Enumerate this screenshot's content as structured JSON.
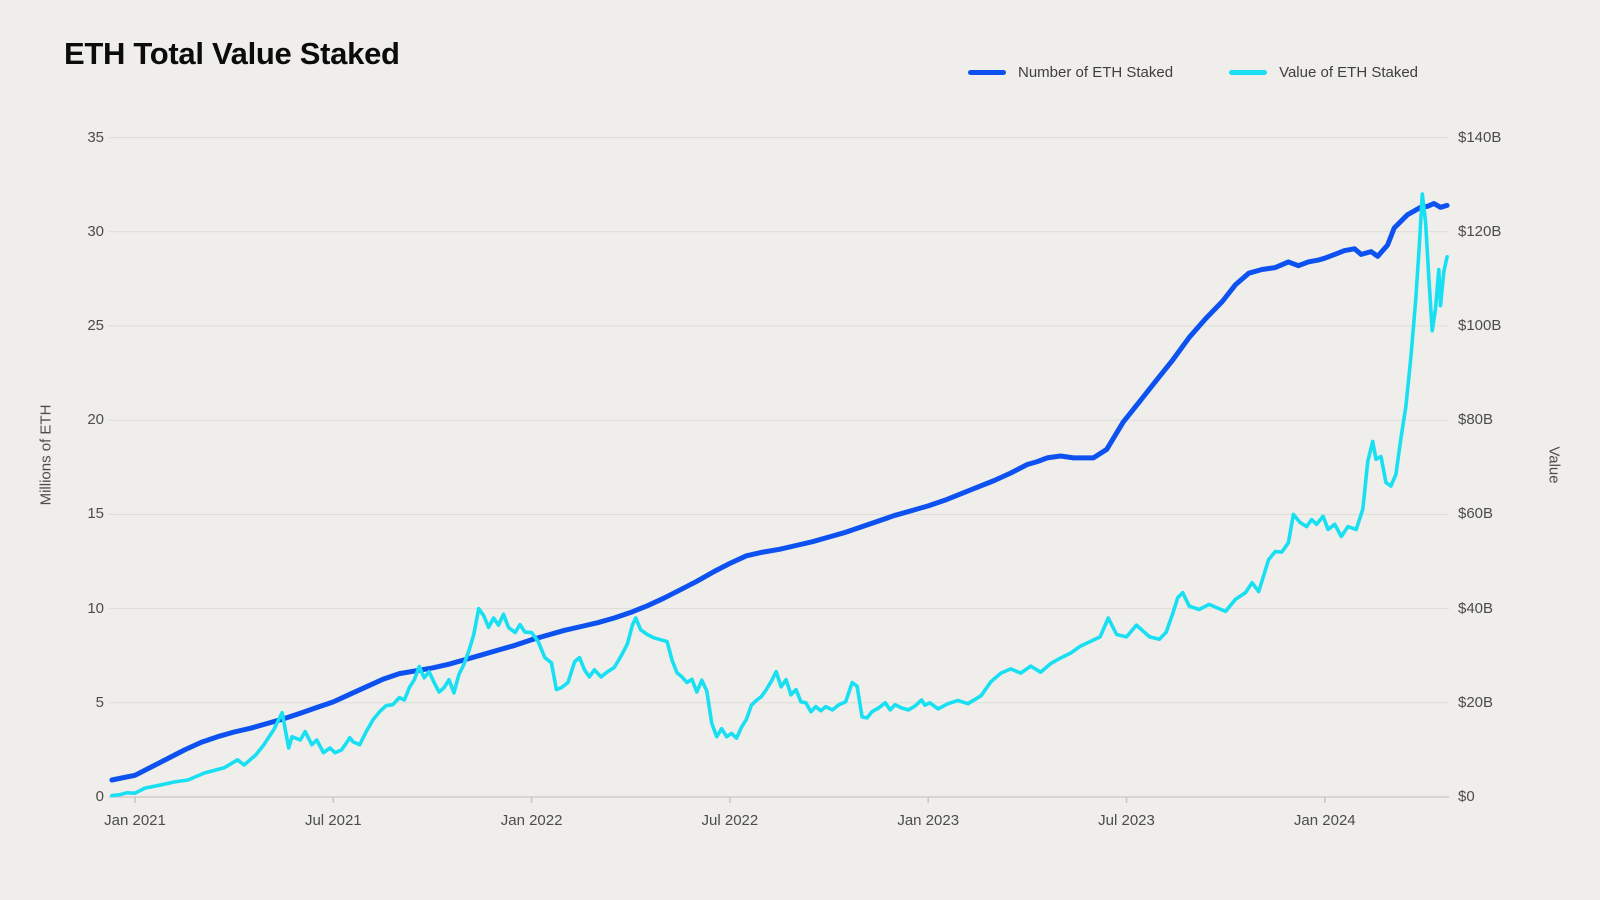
{
  "page": {
    "background": "#efeeeb"
  },
  "header": {
    "title": "ETH Total Value Staked"
  },
  "legend": [
    {
      "label": "Number of ETH Staked",
      "color": "#0d52f0"
    },
    {
      "label": "Value of ETH Staked",
      "color": "#18dff2"
    }
  ],
  "chart_data": {
    "type": "line",
    "title": "ETH Total Value Staked",
    "grid": "horizontal",
    "legend_position": "top-right",
    "x_axis": {
      "unit": "months since Jan 2021",
      "range_months": [
        -0.7,
        39.75
      ],
      "tick_positions_months": [
        0,
        6,
        12,
        18,
        24,
        30,
        36
      ],
      "tick_labels": [
        "Jan 2021",
        "Jul 2021",
        "Jan 2022",
        "Jul 2022",
        "Jan 2023",
        "Jul 2023",
        "Jan 2024"
      ]
    },
    "y_axis_left": {
      "label": "Millions of ETH",
      "range": [
        0,
        35
      ],
      "ticks": [
        0,
        5,
        10,
        15,
        20,
        25,
        30,
        35
      ]
    },
    "y_axis_right": {
      "label": "Value",
      "range_billions": [
        0,
        140
      ],
      "ticks": [
        "$0",
        "$20B",
        "$40B",
        "$60B",
        "$80B",
        "$100B",
        "$120B",
        "$140B"
      ]
    },
    "series": [
      {
        "name": "Number of ETH Staked",
        "axis": "left",
        "unit": "millions of ETH",
        "color": "#0d52f0",
        "width": 5,
        "points": [
          [
            -0.7,
            0.9
          ],
          [
            0,
            1.15
          ],
          [
            0.5,
            1.6
          ],
          [
            1,
            2.05
          ],
          [
            1.5,
            2.5
          ],
          [
            2,
            2.9
          ],
          [
            2.5,
            3.2
          ],
          [
            3,
            3.45
          ],
          [
            3.5,
            3.65
          ],
          [
            4,
            3.9
          ],
          [
            4.5,
            4.15
          ],
          [
            5,
            4.45
          ],
          [
            5.5,
            4.75
          ],
          [
            6,
            5.05
          ],
          [
            6.5,
            5.45
          ],
          [
            7,
            5.85
          ],
          [
            7.5,
            6.25
          ],
          [
            8,
            6.55
          ],
          [
            8.5,
            6.7
          ],
          [
            9,
            6.85
          ],
          [
            9.5,
            7.05
          ],
          [
            10,
            7.3
          ],
          [
            10.5,
            7.55
          ],
          [
            11,
            7.8
          ],
          [
            11.5,
            8.05
          ],
          [
            12,
            8.35
          ],
          [
            12.5,
            8.6
          ],
          [
            13,
            8.85
          ],
          [
            13.5,
            9.05
          ],
          [
            14,
            9.25
          ],
          [
            14.5,
            9.5
          ],
          [
            15,
            9.8
          ],
          [
            15.5,
            10.15
          ],
          [
            16,
            10.55
          ],
          [
            16.5,
            11.0
          ],
          [
            17,
            11.45
          ],
          [
            17.5,
            11.95
          ],
          [
            18,
            12.4
          ],
          [
            18.5,
            12.8
          ],
          [
            19,
            13.0
          ],
          [
            19.5,
            13.15
          ],
          [
            20,
            13.35
          ],
          [
            20.5,
            13.55
          ],
          [
            21,
            13.8
          ],
          [
            21.5,
            14.05
          ],
          [
            22,
            14.35
          ],
          [
            22.5,
            14.65
          ],
          [
            23,
            14.95
          ],
          [
            23.5,
            15.2
          ],
          [
            24,
            15.45
          ],
          [
            24.5,
            15.75
          ],
          [
            25,
            16.1
          ],
          [
            25.5,
            16.45
          ],
          [
            26,
            16.8
          ],
          [
            26.5,
            17.2
          ],
          [
            27,
            17.65
          ],
          [
            27.3,
            17.8
          ],
          [
            27.6,
            18.0
          ],
          [
            28,
            18.1
          ],
          [
            28.4,
            18.0
          ],
          [
            29,
            18.0
          ],
          [
            29.4,
            18.45
          ],
          [
            29.9,
            19.9
          ],
          [
            30.4,
            21.0
          ],
          [
            30.9,
            22.1
          ],
          [
            31.4,
            23.2
          ],
          [
            31.9,
            24.4
          ],
          [
            32.4,
            25.4
          ],
          [
            32.9,
            26.3
          ],
          [
            33.3,
            27.2
          ],
          [
            33.7,
            27.8
          ],
          [
            34.1,
            28.0
          ],
          [
            34.5,
            28.1
          ],
          [
            34.9,
            28.4
          ],
          [
            35.2,
            28.2
          ],
          [
            35.5,
            28.4
          ],
          [
            35.8,
            28.5
          ],
          [
            36,
            28.6
          ],
          [
            36.3,
            28.8
          ],
          [
            36.6,
            29.0
          ],
          [
            36.9,
            29.1
          ],
          [
            37.1,
            28.8
          ],
          [
            37.4,
            28.95
          ],
          [
            37.6,
            28.7
          ],
          [
            37.9,
            29.3
          ],
          [
            38.1,
            30.2
          ],
          [
            38.5,
            30.9
          ],
          [
            38.9,
            31.3
          ],
          [
            39.1,
            31.35
          ],
          [
            39.3,
            31.5
          ],
          [
            39.5,
            31.3
          ],
          [
            39.7,
            31.4
          ]
        ]
      },
      {
        "name": "Value of ETH Staked",
        "axis": "right",
        "unit": "billions USD",
        "color": "#18dff2",
        "width": 3.6,
        "points": [
          [
            -0.7,
            0.3
          ],
          [
            -0.45,
            0.5
          ],
          [
            -0.25,
            0.9
          ],
          [
            0,
            0.8
          ],
          [
            0.3,
            1.9
          ],
          [
            0.8,
            2.6
          ],
          [
            1.2,
            3.2
          ],
          [
            1.6,
            3.6
          ],
          [
            2.1,
            5.1
          ],
          [
            2.7,
            6.2
          ],
          [
            3.1,
            7.9
          ],
          [
            3.3,
            6.8
          ],
          [
            3.65,
            8.9
          ],
          [
            3.9,
            11.1
          ],
          [
            4.2,
            14.3
          ],
          [
            4.45,
            17.9
          ],
          [
            4.65,
            10.4
          ],
          [
            4.75,
            12.8
          ],
          [
            5.0,
            12.1
          ],
          [
            5.15,
            13.9
          ],
          [
            5.35,
            11.1
          ],
          [
            5.5,
            12.1
          ],
          [
            5.7,
            9.4
          ],
          [
            5.9,
            10.4
          ],
          [
            6.05,
            9.4
          ],
          [
            6.25,
            10.0
          ],
          [
            6.4,
            11.5
          ],
          [
            6.5,
            12.6
          ],
          [
            6.6,
            11.7
          ],
          [
            6.8,
            11.1
          ],
          [
            7.0,
            13.9
          ],
          [
            7.2,
            16.4
          ],
          [
            7.4,
            18.1
          ],
          [
            7.6,
            19.4
          ],
          [
            7.8,
            19.6
          ],
          [
            8.0,
            21.1
          ],
          [
            8.15,
            20.6
          ],
          [
            8.3,
            23.2
          ],
          [
            8.45,
            24.9
          ],
          [
            8.6,
            27.7
          ],
          [
            8.75,
            25.3
          ],
          [
            8.9,
            26.6
          ],
          [
            9.05,
            24.3
          ],
          [
            9.2,
            22.3
          ],
          [
            9.35,
            23.2
          ],
          [
            9.5,
            24.9
          ],
          [
            9.65,
            22.1
          ],
          [
            9.8,
            26.0
          ],
          [
            9.95,
            28.1
          ],
          [
            10.1,
            31.0
          ],
          [
            10.25,
            34.5
          ],
          [
            10.4,
            40.0
          ],
          [
            10.55,
            38.5
          ],
          [
            10.7,
            36.0
          ],
          [
            10.85,
            38.0
          ],
          [
            11.0,
            36.5
          ],
          [
            11.15,
            38.8
          ],
          [
            11.3,
            36.0
          ],
          [
            11.5,
            34.9
          ],
          [
            11.65,
            36.6
          ],
          [
            11.8,
            35.0
          ],
          [
            12.0,
            34.9
          ],
          [
            12.2,
            33.0
          ],
          [
            12.4,
            29.6
          ],
          [
            12.6,
            28.5
          ],
          [
            12.75,
            22.8
          ],
          [
            12.9,
            23.2
          ],
          [
            13.1,
            24.3
          ],
          [
            13.3,
            28.7
          ],
          [
            13.45,
            29.6
          ],
          [
            13.6,
            27.0
          ],
          [
            13.75,
            25.5
          ],
          [
            13.9,
            27.0
          ],
          [
            14.1,
            25.5
          ],
          [
            14.3,
            26.6
          ],
          [
            14.5,
            27.5
          ],
          [
            14.7,
            29.8
          ],
          [
            14.9,
            32.5
          ],
          [
            15.05,
            36.5
          ],
          [
            15.15,
            38.0
          ],
          [
            15.3,
            35.5
          ],
          [
            15.5,
            34.5
          ],
          [
            15.7,
            33.8
          ],
          [
            15.9,
            33.4
          ],
          [
            16.1,
            33.0
          ],
          [
            16.25,
            29.0
          ],
          [
            16.4,
            26.4
          ],
          [
            16.55,
            25.5
          ],
          [
            16.7,
            24.3
          ],
          [
            16.85,
            25.0
          ],
          [
            17.0,
            22.3
          ],
          [
            17.15,
            24.8
          ],
          [
            17.3,
            22.5
          ],
          [
            17.45,
            15.7
          ],
          [
            17.6,
            12.8
          ],
          [
            17.75,
            14.5
          ],
          [
            17.9,
            12.8
          ],
          [
            18.05,
            13.5
          ],
          [
            18.2,
            12.5
          ],
          [
            18.35,
            14.8
          ],
          [
            18.5,
            16.5
          ],
          [
            18.65,
            19.5
          ],
          [
            18.8,
            20.5
          ],
          [
            18.95,
            21.3
          ],
          [
            19.1,
            22.8
          ],
          [
            19.25,
            24.5
          ],
          [
            19.4,
            26.6
          ],
          [
            19.55,
            23.4
          ],
          [
            19.7,
            24.9
          ],
          [
            19.85,
            21.7
          ],
          [
            20.0,
            22.8
          ],
          [
            20.15,
            20.2
          ],
          [
            20.3,
            20.0
          ],
          [
            20.45,
            18.1
          ],
          [
            20.6,
            19.2
          ],
          [
            20.75,
            18.3
          ],
          [
            20.9,
            19.2
          ],
          [
            21.1,
            18.5
          ],
          [
            21.3,
            19.6
          ],
          [
            21.5,
            20.2
          ],
          [
            21.7,
            24.3
          ],
          [
            21.85,
            23.5
          ],
          [
            22.0,
            17.0
          ],
          [
            22.15,
            16.8
          ],
          [
            22.3,
            18.1
          ],
          [
            22.5,
            18.9
          ],
          [
            22.7,
            20.0
          ],
          [
            22.85,
            18.5
          ],
          [
            23.0,
            19.6
          ],
          [
            23.2,
            18.9
          ],
          [
            23.4,
            18.5
          ],
          [
            23.6,
            19.3
          ],
          [
            23.8,
            20.6
          ],
          [
            23.9,
            19.5
          ],
          [
            24.05,
            20.0
          ],
          [
            24.3,
            18.7
          ],
          [
            24.6,
            19.8
          ],
          [
            24.9,
            20.5
          ],
          [
            25.2,
            19.8
          ],
          [
            25.6,
            21.5
          ],
          [
            25.9,
            24.5
          ],
          [
            26.2,
            26.3
          ],
          [
            26.5,
            27.2
          ],
          [
            26.8,
            26.3
          ],
          [
            27.1,
            27.8
          ],
          [
            27.4,
            26.5
          ],
          [
            27.7,
            28.3
          ],
          [
            28.0,
            29.5
          ],
          [
            28.3,
            30.5
          ],
          [
            28.6,
            32.0
          ],
          [
            28.9,
            33.0
          ],
          [
            29.2,
            34.0
          ],
          [
            29.45,
            38.0
          ],
          [
            29.7,
            34.5
          ],
          [
            30.0,
            34.0
          ],
          [
            30.3,
            36.5
          ],
          [
            30.7,
            34.0
          ],
          [
            31.0,
            33.5
          ],
          [
            31.2,
            35.0
          ],
          [
            31.4,
            39.0
          ],
          [
            31.55,
            42.3
          ],
          [
            31.7,
            43.4
          ],
          [
            31.9,
            40.5
          ],
          [
            32.2,
            39.8
          ],
          [
            32.5,
            40.9
          ],
          [
            32.8,
            40.0
          ],
          [
            33.0,
            39.4
          ],
          [
            33.3,
            42.0
          ],
          [
            33.6,
            43.4
          ],
          [
            33.8,
            45.5
          ],
          [
            34.0,
            43.6
          ],
          [
            34.3,
            50.4
          ],
          [
            34.5,
            52.1
          ],
          [
            34.7,
            52.0
          ],
          [
            34.9,
            54.0
          ],
          [
            35.05,
            60.0
          ],
          [
            35.25,
            58.3
          ],
          [
            35.45,
            57.4
          ],
          [
            35.6,
            58.9
          ],
          [
            35.75,
            57.9
          ],
          [
            35.95,
            59.6
          ],
          [
            36.1,
            56.8
          ],
          [
            36.3,
            57.9
          ],
          [
            36.5,
            55.3
          ],
          [
            36.7,
            57.4
          ],
          [
            36.95,
            56.8
          ],
          [
            37.15,
            61.1
          ],
          [
            37.3,
            71.3
          ],
          [
            37.45,
            75.5
          ],
          [
            37.55,
            71.7
          ],
          [
            37.7,
            72.3
          ],
          [
            37.85,
            66.8
          ],
          [
            38.0,
            66.0
          ],
          [
            38.15,
            68.5
          ],
          [
            38.3,
            76.0
          ],
          [
            38.45,
            82.8
          ],
          [
            38.6,
            93.0
          ],
          [
            38.75,
            105.5
          ],
          [
            38.85,
            116.0
          ],
          [
            38.95,
            128.0
          ],
          [
            39.05,
            122.0
          ],
          [
            39.15,
            110.0
          ],
          [
            39.25,
            99.0
          ],
          [
            39.35,
            103.6
          ],
          [
            39.45,
            112.0
          ],
          [
            39.5,
            104.3
          ],
          [
            39.6,
            111.5
          ],
          [
            39.7,
            114.7
          ]
        ]
      }
    ]
  }
}
